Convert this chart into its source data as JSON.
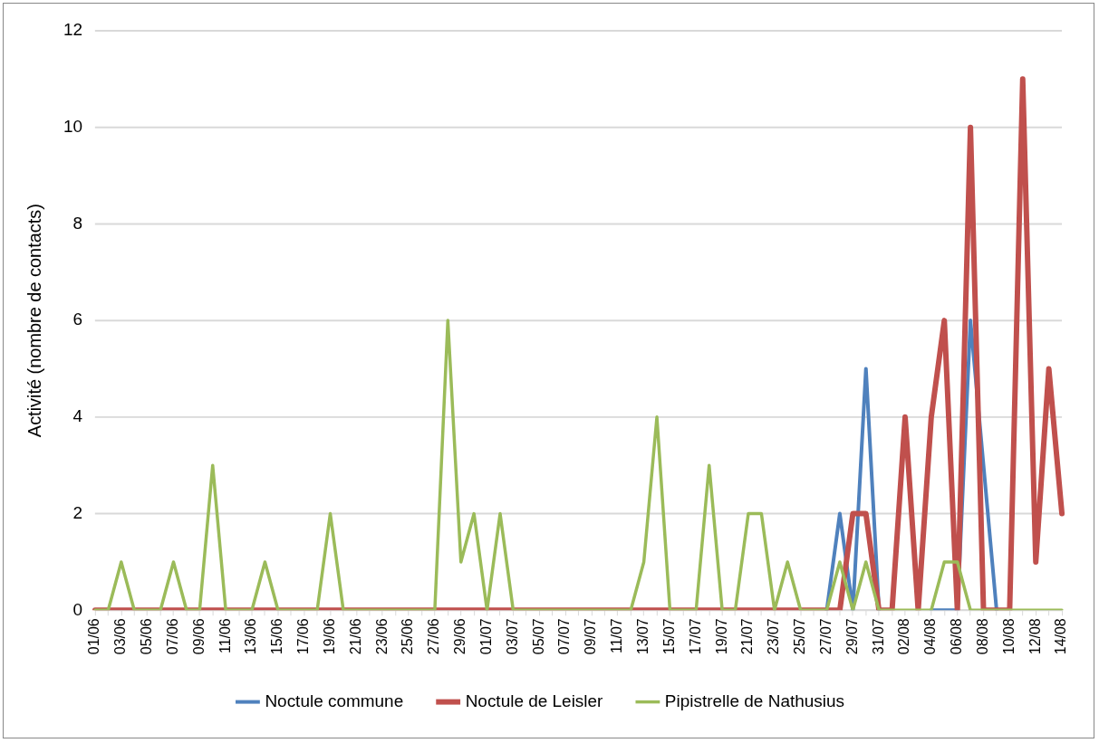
{
  "chart_data": {
    "type": "line",
    "ylabel": "Activité (nombre de contacts)",
    "categories": [
      "01/06",
      null,
      "03/06",
      null,
      "05/06",
      null,
      "07/06",
      null,
      "09/06",
      null,
      "11/06",
      null,
      "13/06",
      null,
      "15/06",
      null,
      "17/06",
      null,
      "19/06",
      null,
      "21/06",
      null,
      "23/06",
      null,
      "25/06",
      null,
      "27/06",
      null,
      "29/06",
      null,
      "01/07",
      null,
      "03/07",
      null,
      "05/07",
      null,
      "07/07",
      null,
      "09/07",
      null,
      "11/07",
      null,
      "13/07",
      null,
      "15/07",
      null,
      "17/07",
      null,
      "19/07",
      null,
      "21/07",
      null,
      "23/07",
      null,
      "25/07",
      null,
      "27/07",
      null,
      "29/07",
      null,
      "31/07",
      null,
      "02/08",
      null,
      "04/08",
      null,
      "06/08",
      null,
      "08/08",
      null,
      "10/08",
      null,
      "12/08",
      null,
      "14/08"
    ],
    "series": [
      {
        "name": "Noctule commune",
        "color": "#4f81bd",
        "values": [
          null,
          null,
          null,
          null,
          null,
          null,
          null,
          null,
          null,
          null,
          null,
          null,
          null,
          null,
          null,
          null,
          null,
          null,
          null,
          null,
          null,
          null,
          null,
          null,
          null,
          null,
          null,
          null,
          null,
          null,
          null,
          null,
          null,
          null,
          null,
          null,
          null,
          null,
          null,
          null,
          null,
          null,
          null,
          null,
          null,
          null,
          null,
          null,
          null,
          null,
          null,
          null,
          null,
          null,
          null,
          null,
          0,
          2,
          0,
          5,
          0,
          null,
          null,
          null,
          0,
          0,
          0,
          6,
          3,
          0,
          null,
          null,
          null,
          null,
          null
        ]
      },
      {
        "name": "Noctule de Leisler",
        "color": "#c0504d",
        "values": [
          0,
          0,
          0,
          0,
          0,
          0,
          0,
          0,
          0,
          0,
          0,
          0,
          0,
          0,
          0,
          0,
          0,
          0,
          0,
          0,
          0,
          0,
          0,
          0,
          0,
          0,
          0,
          0,
          0,
          0,
          0,
          0,
          0,
          0,
          0,
          0,
          0,
          0,
          0,
          0,
          0,
          0,
          0,
          0,
          0,
          0,
          0,
          0,
          0,
          0,
          0,
          0,
          0,
          0,
          0,
          0,
          0,
          0,
          2,
          2,
          0,
          0,
          4,
          0,
          4,
          6,
          0,
          10,
          0,
          0,
          0,
          11,
          1,
          5,
          2
        ]
      },
      {
        "name": "Pipistrelle de Nathusius",
        "color": "#9bbb59",
        "values": [
          0,
          0,
          1,
          0,
          0,
          0,
          1,
          0,
          0,
          3,
          0,
          0,
          0,
          1,
          0,
          0,
          0,
          0,
          2,
          0,
          0,
          0,
          0,
          0,
          0,
          0,
          0,
          6,
          1,
          2,
          0,
          2,
          0,
          0,
          0,
          0,
          0,
          0,
          0,
          0,
          0,
          0,
          1,
          4,
          0,
          0,
          0,
          3,
          0,
          0,
          2,
          2,
          0,
          1,
          0,
          0,
          0,
          1,
          0,
          1,
          0,
          0,
          0,
          0,
          0,
          1,
          1,
          0,
          0,
          0,
          0,
          0,
          0,
          0,
          0
        ]
      }
    ],
    "ylim": [
      0,
      12
    ],
    "yticks": [
      0,
      2,
      4,
      6,
      8,
      10,
      12
    ],
    "grid": "y",
    "legend": "bottom",
    "marker": "none",
    "line_style": "solid"
  }
}
